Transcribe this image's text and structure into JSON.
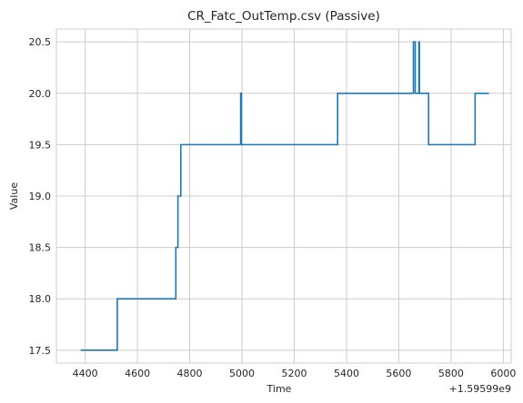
{
  "chart_data": {
    "type": "line",
    "title": "CR_Fatc_OutTemp.csv (Passive)",
    "xlabel": "Time",
    "ylabel": "Value",
    "x_offset_label": "+1.59599e9",
    "xlim": [
      4290,
      6030
    ],
    "ylim": [
      17.375,
      20.625
    ],
    "x_ticks": [
      4400,
      4600,
      4800,
      5000,
      5200,
      5400,
      5600,
      5800,
      6000
    ],
    "y_ticks": [
      17.5,
      18.0,
      18.5,
      19.0,
      19.5,
      20.0,
      20.5
    ],
    "grid": true,
    "line_color": "#1f77b4",
    "series": [
      {
        "x": [
          4383,
          4523,
          4523,
          4747,
          4747,
          4755,
          4755,
          4766,
          4766,
          4776,
          4776,
          4995,
          4995,
          4998,
          4998,
          5366,
          5366,
          5656,
          5656,
          5663,
          5663,
          5667,
          5667,
          5677,
          5677,
          5679,
          5679,
          5714,
          5714,
          5892,
          5892,
          5945
        ],
        "y": [
          17.5,
          17.5,
          18.0,
          18.0,
          18.5,
          18.5,
          19.0,
          19.0,
          19.5,
          19.5,
          19.5,
          19.5,
          20.0,
          20.0,
          19.5,
          19.5,
          20.0,
          20.0,
          20.5,
          20.5,
          20.0,
          20.0,
          20.0,
          20.0,
          20.5,
          20.5,
          20.0,
          20.0,
          19.5,
          19.5,
          20.0,
          20.0
        ]
      }
    ]
  }
}
